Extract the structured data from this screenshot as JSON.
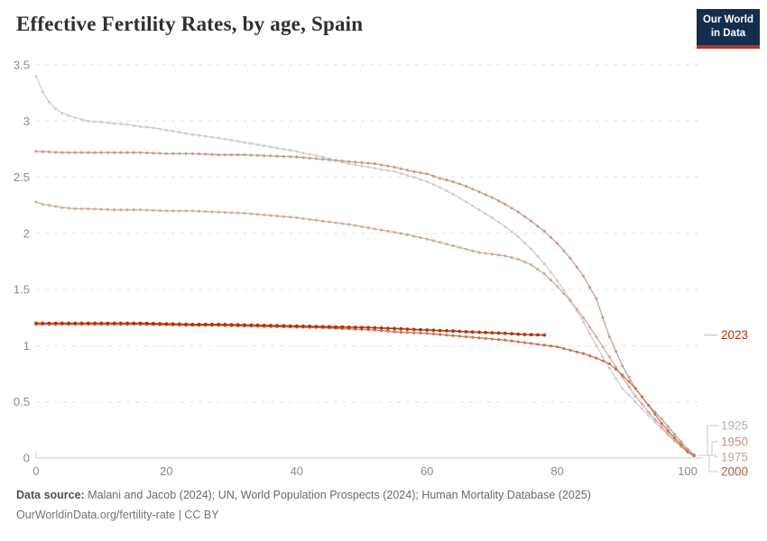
{
  "header": {
    "title": "Effective Fertility Rates, by age, Spain",
    "logo": {
      "line1": "Our World",
      "line2": "in Data",
      "bg_color": "#132e4f",
      "bar_color": "#b43425"
    }
  },
  "chart_data": {
    "type": "line",
    "title": "Effective Fertility Rates, by age, Spain",
    "xlabel": "",
    "ylabel": "",
    "xlim": [
      0,
      102.2
    ],
    "ylim": [
      0,
      3.5
    ],
    "x_ticks": [
      0,
      20,
      40,
      60,
      80,
      100
    ],
    "y_ticks": [
      0,
      0.5,
      1,
      1.5,
      2,
      2.5,
      3,
      3.5
    ],
    "grid": "horizontal-dashed",
    "legend_position": "right-end-labels",
    "axis_color": "#c9c9c9",
    "grid_color": "#e0e0e0",
    "tick_label_color": "#8b8b8b",
    "series": [
      {
        "name": "1925",
        "color": "#cfcfcf",
        "label_color": "#b3b3b3",
        "points": [
          [
            0,
            3.4
          ],
          [
            1,
            3.26
          ],
          [
            2,
            3.17
          ],
          [
            3,
            3.11
          ],
          [
            4,
            3.07
          ],
          [
            5,
            3.05
          ],
          [
            6,
            3.03
          ],
          [
            8,
            3.0
          ],
          [
            10,
            2.99
          ],
          [
            12,
            2.98
          ],
          [
            14,
            2.97
          ],
          [
            16,
            2.95
          ],
          [
            18,
            2.94
          ],
          [
            20,
            2.92
          ],
          [
            24,
            2.88
          ],
          [
            28,
            2.85
          ],
          [
            32,
            2.81
          ],
          [
            36,
            2.77
          ],
          [
            40,
            2.73
          ],
          [
            44,
            2.68
          ],
          [
            48,
            2.62
          ],
          [
            52,
            2.58
          ],
          [
            55,
            2.55
          ],
          [
            58,
            2.5
          ],
          [
            60,
            2.46
          ],
          [
            62,
            2.41
          ],
          [
            64,
            2.35
          ],
          [
            66,
            2.28
          ],
          [
            68,
            2.21
          ],
          [
            70,
            2.14
          ],
          [
            72,
            2.06
          ],
          [
            74,
            1.97
          ],
          [
            76,
            1.86
          ],
          [
            78,
            1.73
          ],
          [
            80,
            1.58
          ],
          [
            82,
            1.41
          ],
          [
            84,
            1.21
          ],
          [
            86,
            1.0
          ],
          [
            88,
            0.8
          ],
          [
            90,
            0.62
          ],
          [
            92,
            0.5
          ],
          [
            94,
            0.38
          ],
          [
            96,
            0.26
          ],
          [
            98,
            0.15
          ],
          [
            100,
            0.05
          ],
          [
            101,
            0.02
          ]
        ]
      },
      {
        "name": "1950",
        "color": "#c49c90",
        "label_color": "#bd968a",
        "points": [
          [
            0,
            2.73
          ],
          [
            4,
            2.72
          ],
          [
            8,
            2.72
          ],
          [
            12,
            2.72
          ],
          [
            16,
            2.72
          ],
          [
            20,
            2.71
          ],
          [
            24,
            2.71
          ],
          [
            28,
            2.7
          ],
          [
            32,
            2.7
          ],
          [
            36,
            2.69
          ],
          [
            40,
            2.68
          ],
          [
            44,
            2.66
          ],
          [
            48,
            2.64
          ],
          [
            52,
            2.62
          ],
          [
            55,
            2.59
          ],
          [
            58,
            2.55
          ],
          [
            60,
            2.53
          ],
          [
            62,
            2.49
          ],
          [
            64,
            2.46
          ],
          [
            66,
            2.42
          ],
          [
            68,
            2.37
          ],
          [
            70,
            2.32
          ],
          [
            72,
            2.26
          ],
          [
            74,
            2.19
          ],
          [
            76,
            2.11
          ],
          [
            78,
            2.02
          ],
          [
            80,
            1.91
          ],
          [
            82,
            1.78
          ],
          [
            84,
            1.62
          ],
          [
            86,
            1.42
          ],
          [
            87,
            1.25
          ],
          [
            88,
            1.08
          ],
          [
            90,
            0.82
          ],
          [
            92,
            0.62
          ],
          [
            94,
            0.47
          ],
          [
            96,
            0.35
          ],
          [
            98,
            0.21
          ],
          [
            100,
            0.08
          ],
          [
            101,
            0.03
          ]
        ]
      },
      {
        "name": "1975",
        "color": "#d2ab9d",
        "label_color": "#cba393",
        "points": [
          [
            0,
            2.28
          ],
          [
            1,
            2.26
          ],
          [
            2,
            2.25
          ],
          [
            4,
            2.23
          ],
          [
            6,
            2.22
          ],
          [
            8,
            2.22
          ],
          [
            12,
            2.21
          ],
          [
            16,
            2.21
          ],
          [
            20,
            2.2
          ],
          [
            24,
            2.2
          ],
          [
            28,
            2.19
          ],
          [
            32,
            2.18
          ],
          [
            36,
            2.16
          ],
          [
            40,
            2.14
          ],
          [
            44,
            2.11
          ],
          [
            48,
            2.08
          ],
          [
            52,
            2.04
          ],
          [
            56,
            2.0
          ],
          [
            60,
            1.95
          ],
          [
            64,
            1.89
          ],
          [
            68,
            1.83
          ],
          [
            72,
            1.8
          ],
          [
            74,
            1.77
          ],
          [
            76,
            1.72
          ],
          [
            78,
            1.64
          ],
          [
            80,
            1.53
          ],
          [
            82,
            1.4
          ],
          [
            84,
            1.25
          ],
          [
            86,
            1.08
          ],
          [
            88,
            0.9
          ],
          [
            90,
            0.72
          ],
          [
            92,
            0.55
          ],
          [
            94,
            0.41
          ],
          [
            96,
            0.28
          ],
          [
            98,
            0.16
          ],
          [
            100,
            0.05
          ],
          [
            101,
            0.02
          ]
        ]
      },
      {
        "name": "2000",
        "color": "#c76f52",
        "label_color": "#c05a3b",
        "points": [
          [
            0,
            1.19
          ],
          [
            4,
            1.19
          ],
          [
            8,
            1.19
          ],
          [
            12,
            1.19
          ],
          [
            16,
            1.19
          ],
          [
            20,
            1.185
          ],
          [
            24,
            1.18
          ],
          [
            28,
            1.18
          ],
          [
            32,
            1.175
          ],
          [
            36,
            1.17
          ],
          [
            40,
            1.165
          ],
          [
            44,
            1.16
          ],
          [
            48,
            1.15
          ],
          [
            52,
            1.14
          ],
          [
            56,
            1.12
          ],
          [
            60,
            1.11
          ],
          [
            64,
            1.09
          ],
          [
            68,
            1.07
          ],
          [
            72,
            1.05
          ],
          [
            76,
            1.02
          ],
          [
            80,
            0.99
          ],
          [
            82,
            0.96
          ],
          [
            84,
            0.93
          ],
          [
            86,
            0.89
          ],
          [
            88,
            0.84
          ],
          [
            90,
            0.74
          ],
          [
            92,
            0.62
          ],
          [
            94,
            0.47
          ],
          [
            96,
            0.31
          ],
          [
            98,
            0.18
          ],
          [
            100,
            0.06
          ],
          [
            101,
            0.02
          ]
        ]
      },
      {
        "name": "2023",
        "color": "#b13507",
        "label_color": "#b13507",
        "points": [
          [
            0,
            1.2
          ],
          [
            4,
            1.2
          ],
          [
            8,
            1.2
          ],
          [
            12,
            1.2
          ],
          [
            16,
            1.2
          ],
          [
            20,
            1.195
          ],
          [
            24,
            1.19
          ],
          [
            28,
            1.19
          ],
          [
            32,
            1.185
          ],
          [
            36,
            1.18
          ],
          [
            40,
            1.175
          ],
          [
            44,
            1.17
          ],
          [
            48,
            1.165
          ],
          [
            52,
            1.16
          ],
          [
            56,
            1.15
          ],
          [
            60,
            1.14
          ],
          [
            64,
            1.13
          ],
          [
            68,
            1.12
          ],
          [
            72,
            1.11
          ],
          [
            75,
            1.1
          ],
          [
            78,
            1.095
          ]
        ]
      }
    ]
  },
  "footer": {
    "source_label": "Data source:",
    "source_text": "Malani and Jacob (2024); UN, World Population Prospects (2024); Human Mortality Database (2025)",
    "license_line": "OurWorldinData.org/fertility-rate | CC BY"
  }
}
